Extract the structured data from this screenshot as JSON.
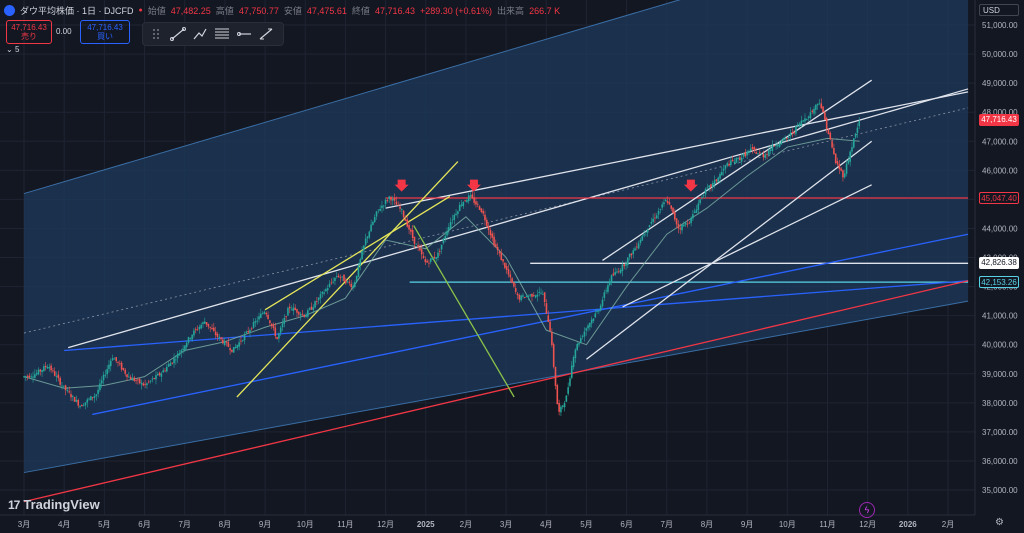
{
  "header": {
    "symbol_name": "ダウ平均株価 · 1日 · DJCFD",
    "open_label": "始値",
    "open_value": "47,482.25",
    "high_label": "高値",
    "high_value": "47,750.77",
    "low_label": "安値",
    "low_value": "47,475.61",
    "close_label": "終値",
    "close_value": "47,716.43",
    "change": "+289.30 (+0.61%)",
    "volume_label": "出来高",
    "volume_value": "266.7 K"
  },
  "quote": {
    "sell_price": "47,716.43",
    "sell_label": "売り",
    "spread": "0.00",
    "buy_price": "47,716.43",
    "buy_label": "買い"
  },
  "indicator_count": "5",
  "currency": "USD",
  "brand": "TradingView",
  "colors": {
    "background": "#131722",
    "channel_fill": "#1d3a5c",
    "red": "#f23645",
    "blue": "#2962ff",
    "cyan": "#5ad2e6",
    "yellow": "#e6e65a",
    "white": "#e0e3eb"
  },
  "chart_data": {
    "type": "candlestick",
    "x_ticks": [
      "3月",
      "4月",
      "5月",
      "6月",
      "7月",
      "8月",
      "9月",
      "10月",
      "11月",
      "12月",
      "2025",
      "2月",
      "3月",
      "4月",
      "5月",
      "6月",
      "7月",
      "8月",
      "9月",
      "10月",
      "11月",
      "12月",
      "2026",
      "2月"
    ],
    "y_ticks": [
      "51,000.00",
      "50,000.00",
      "49,000.00",
      "48,000.00",
      "47,000.00",
      "46,000.00",
      "45,000.00",
      "44,000.00",
      "43,000.00",
      "42,000.00",
      "41,000.00",
      "40,000.00",
      "39,000.00",
      "38,000.00",
      "37,000.00",
      "36,000.00",
      "35,000.00"
    ],
    "ylim": [
      34500,
      51500
    ],
    "price_tags": [
      {
        "value": 47716.43,
        "text": "47,716.43",
        "style": "current"
      },
      {
        "value": 45047.4,
        "text": "45,047.40",
        "style": "red"
      },
      {
        "value": 42826.38,
        "text": "42,826.38",
        "style": "white"
      },
      {
        "value": 42153.26,
        "text": "42,153.26",
        "style": "cyan"
      }
    ],
    "price_path": [
      [
        0,
        38900
      ],
      [
        0.3,
        39000
      ],
      [
        0.6,
        39300
      ],
      [
        1,
        38500
      ],
      [
        1.4,
        37900
      ],
      [
        1.8,
        38300
      ],
      [
        2.2,
        39600
      ],
      [
        2.6,
        38900
      ],
      [
        3,
        38600
      ],
      [
        3.4,
        39000
      ],
      [
        3.8,
        39600
      ],
      [
        4.2,
        40400
      ],
      [
        4.5,
        40800
      ],
      [
        4.8,
        40300
      ],
      [
        5.2,
        39800
      ],
      [
        5.6,
        40500
      ],
      [
        6,
        41200
      ],
      [
        6.3,
        40200
      ],
      [
        6.6,
        41300
      ],
      [
        7,
        41000
      ],
      [
        7.4,
        41700
      ],
      [
        7.8,
        42400
      ],
      [
        8.2,
        42000
      ],
      [
        8.5,
        43600
      ],
      [
        8.8,
        44600
      ],
      [
        9.1,
        45100
      ],
      [
        9.4,
        44600
      ],
      [
        9.7,
        43600
      ],
      [
        10,
        42800
      ],
      [
        10.3,
        43100
      ],
      [
        10.6,
        44200
      ],
      [
        10.9,
        44900
      ],
      [
        11.1,
        45100
      ],
      [
        11.4,
        44600
      ],
      [
        11.7,
        43500
      ],
      [
        12,
        42600
      ],
      [
        12.3,
        41600
      ],
      [
        12.6,
        41700
      ],
      [
        12.9,
        41800
      ],
      [
        13.1,
        40500
      ],
      [
        13.3,
        37600
      ],
      [
        13.5,
        38200
      ],
      [
        13.7,
        39800
      ],
      [
        14,
        40600
      ],
      [
        14.3,
        41200
      ],
      [
        14.6,
        42300
      ],
      [
        14.9,
        42700
      ],
      [
        15.2,
        43300
      ],
      [
        15.5,
        44000
      ],
      [
        15.8,
        44600
      ],
      [
        16,
        45000
      ],
      [
        16.3,
        44000
      ],
      [
        16.6,
        44300
      ],
      [
        16.9,
        45200
      ],
      [
        17.2,
        45600
      ],
      [
        17.5,
        46200
      ],
      [
        17.8,
        46400
      ],
      [
        18.1,
        46700
      ],
      [
        18.4,
        46500
      ],
      [
        18.7,
        46900
      ],
      [
        19,
        47100
      ],
      [
        19.3,
        47600
      ],
      [
        19.6,
        48000
      ],
      [
        19.8,
        48400
      ],
      [
        20,
        47400
      ],
      [
        20.2,
        46300
      ],
      [
        20.4,
        45800
      ],
      [
        20.6,
        46800
      ],
      [
        20.8,
        47716
      ]
    ],
    "month_index_range": [
      0,
      23
    ],
    "ma_path": [
      [
        0,
        38900
      ],
      [
        1,
        38500
      ],
      [
        2,
        38600
      ],
      [
        3,
        38900
      ],
      [
        4,
        39800
      ],
      [
        5,
        40100
      ],
      [
        6,
        40600
      ],
      [
        7,
        41000
      ],
      [
        8,
        41600
      ],
      [
        9,
        43600
      ],
      [
        10,
        43300
      ],
      [
        11,
        44400
      ],
      [
        12,
        43000
      ],
      [
        13,
        40500
      ],
      [
        14,
        40000
      ],
      [
        15,
        42000
      ],
      [
        16,
        43800
      ],
      [
        17,
        44700
      ],
      [
        18,
        45800
      ],
      [
        19,
        46800
      ],
      [
        20,
        47100
      ],
      [
        20.8,
        47000
      ]
    ],
    "channel": {
      "upper": [
        [
          0,
          45200
        ],
        [
          23.5,
          54800
        ]
      ],
      "lower": [
        [
          0,
          35600
        ],
        [
          23.5,
          41500
        ]
      ]
    },
    "lines": [
      {
        "name": "",
        "color": "white",
        "from": [
          1.1,
          39900
        ],
        "to": [
          23.5,
          48800
        ]
      },
      {
        "name": "",
        "color": "white",
        "from": [
          9.0,
          44700
        ],
        "to": [
          23.5,
          48700
        ]
      },
      {
        "name": "",
        "color": "white",
        "from": [
          12.6,
          42800
        ],
        "to": [
          23.5,
          42800
        ]
      },
      {
        "name": "",
        "color": "red",
        "from": [
          9.0,
          45047
        ],
        "to": [
          23.5,
          45047
        ]
      },
      {
        "name": "",
        "color": "cyan",
        "from": [
          9.6,
          42153
        ],
        "to": [
          23.5,
          42153
        ]
      },
      {
        "name": "",
        "color": "blue",
        "from": [
          1.7,
          37600
        ],
        "to": [
          23.5,
          43800
        ]
      },
      {
        "name": "",
        "color": "blue",
        "from": [
          1.0,
          39800
        ],
        "to": [
          23.5,
          42200
        ]
      },
      {
        "name": "",
        "color": "red",
        "from": [
          0,
          34600
        ],
        "to": [
          23.5,
          42200
        ]
      },
      {
        "name": "",
        "color": "yellow",
        "from": [
          5.3,
          38200
        ],
        "to": [
          10.8,
          46300
        ]
      },
      {
        "name": "",
        "color": "yellow",
        "from": [
          6.0,
          41200
        ],
        "to": [
          10.6,
          45100
        ]
      },
      {
        "name": "",
        "color": "green",
        "from": [
          9.7,
          44100
        ],
        "to": [
          12.2,
          38200
        ]
      },
      {
        "name": "",
        "color": "white",
        "from": [
          14.0,
          39500
        ],
        "to": [
          21.1,
          47000
        ]
      },
      {
        "name": "",
        "color": "white",
        "from": [
          14.4,
          42900
        ],
        "to": [
          21.1,
          49100
        ]
      },
      {
        "name": "",
        "color": "white",
        "from": [
          14.9,
          41300
        ],
        "to": [
          21.1,
          45500
        ]
      }
    ],
    "arrows": [
      [
        9.4,
        45200
      ],
      [
        11.2,
        45200
      ],
      [
        16.6,
        45200
      ]
    ]
  }
}
